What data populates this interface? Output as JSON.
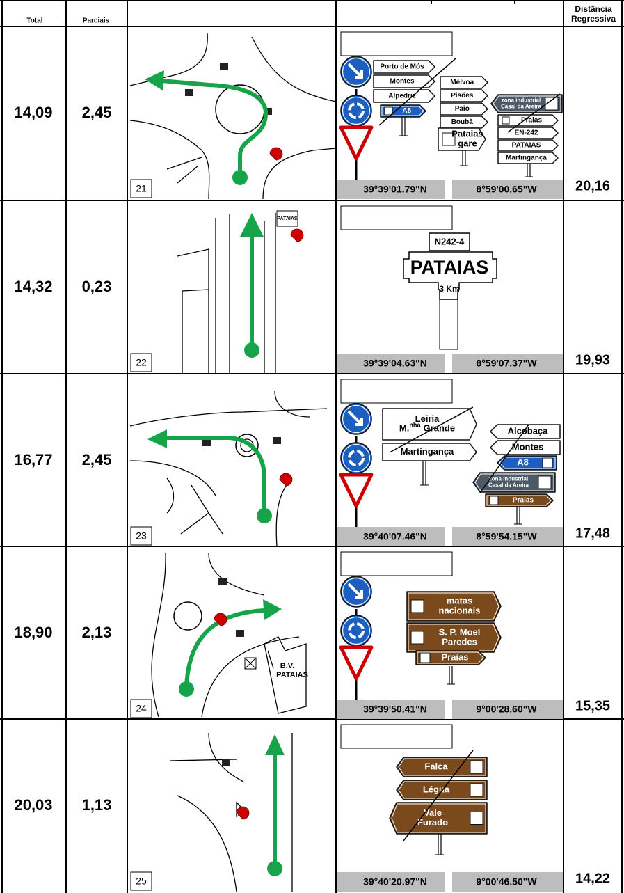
{
  "header": {
    "total": "Total",
    "partial": "Parciais",
    "regressive": [
      "Distância",
      "Regressiva"
    ]
  },
  "rows": [
    {
      "total": "14,09",
      "partial": "2,45",
      "number": "21",
      "latitude": "39°39'01.79\"N",
      "longitude": "8°59'00.65\"W",
      "regressive": "20,16",
      "signs": [
        "Porto de Mós",
        "Montes",
        "Alpedriz",
        "A8",
        "Mélvoa",
        "Pisões",
        "Paio",
        "Boubã",
        [
          "Pataias",
          "gare"
        ],
        [
          "zona industrial",
          "Casal da Areira"
        ],
        "Praias",
        "EN-242",
        "PATAIAS",
        "Martingança"
      ]
    },
    {
      "total": "14,32",
      "partial": "0,23",
      "number": "22",
      "latitude": "39°39'04.63\"N",
      "longitude": "8°59'07.37\"W",
      "regressive": "19,93",
      "signs": [
        "N242-4",
        "PATAIAS",
        "3 Km"
      ],
      "diagram_labels": [
        "PATAIAS"
      ]
    },
    {
      "total": "16,77",
      "partial": "2,45",
      "number": "23",
      "latitude": "39°40'07.46\"N",
      "longitude": "8°59'54.15\"W",
      "regressive": "17,48",
      "signs": [
        [
          "Leiria",
          {
            "prefix": "M.",
            "superscript": "nha",
            "rest": "Grande"
          }
        ],
        "Martingança",
        "Alcobaça",
        "Montes",
        "A8",
        [
          "zona industrial",
          "Casal da Areira"
        ],
        "Praias"
      ]
    },
    {
      "total": "18,90",
      "partial": "2,13",
      "number": "24",
      "latitude": "39°39'50.41\"N",
      "longitude": "9°00'28.60\"W",
      "regressive": "15,35",
      "signs": [
        [
          "matas",
          "nacionais"
        ],
        [
          "S. P. Moel",
          "Paredes"
        ],
        "Praias"
      ],
      "diagram_labels": [
        [
          "B.V.",
          "PATAIAS"
        ]
      ]
    },
    {
      "total": "20,03",
      "partial": "1,13",
      "number": "25",
      "latitude": "39°40'20.97\"N",
      "longitude": "9°00'46.50\"W",
      "regressive": "14,22",
      "signs": [
        "Falca",
        "Légua",
        [
          "Vale",
          "Furado"
        ]
      ]
    }
  ]
}
